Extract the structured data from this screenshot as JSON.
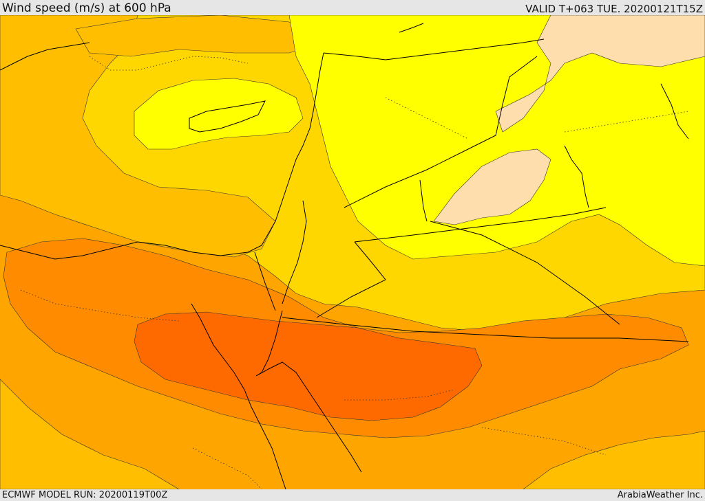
{
  "header": {
    "title": "Wind speed (m/s) at 600 hPa",
    "valid_time": "VALID T+063 TUE. 20200121T15Z"
  },
  "footer": {
    "model_run": "ECMWF MODEL RUN: 20200119T00Z",
    "credit": "ArabiaWeather Inc."
  },
  "map": {
    "colors": {
      "band_light_peach": "#ffdead",
      "band_yellow": "#ffff00",
      "band_gold": "#ffd700",
      "band_amber": "#ffbf00",
      "band_orange": "#ffa500",
      "band_dark_orange": "#ff8c00",
      "band_red_orange": "#ff6a00",
      "coast_border_line": "#000000"
    }
  }
}
